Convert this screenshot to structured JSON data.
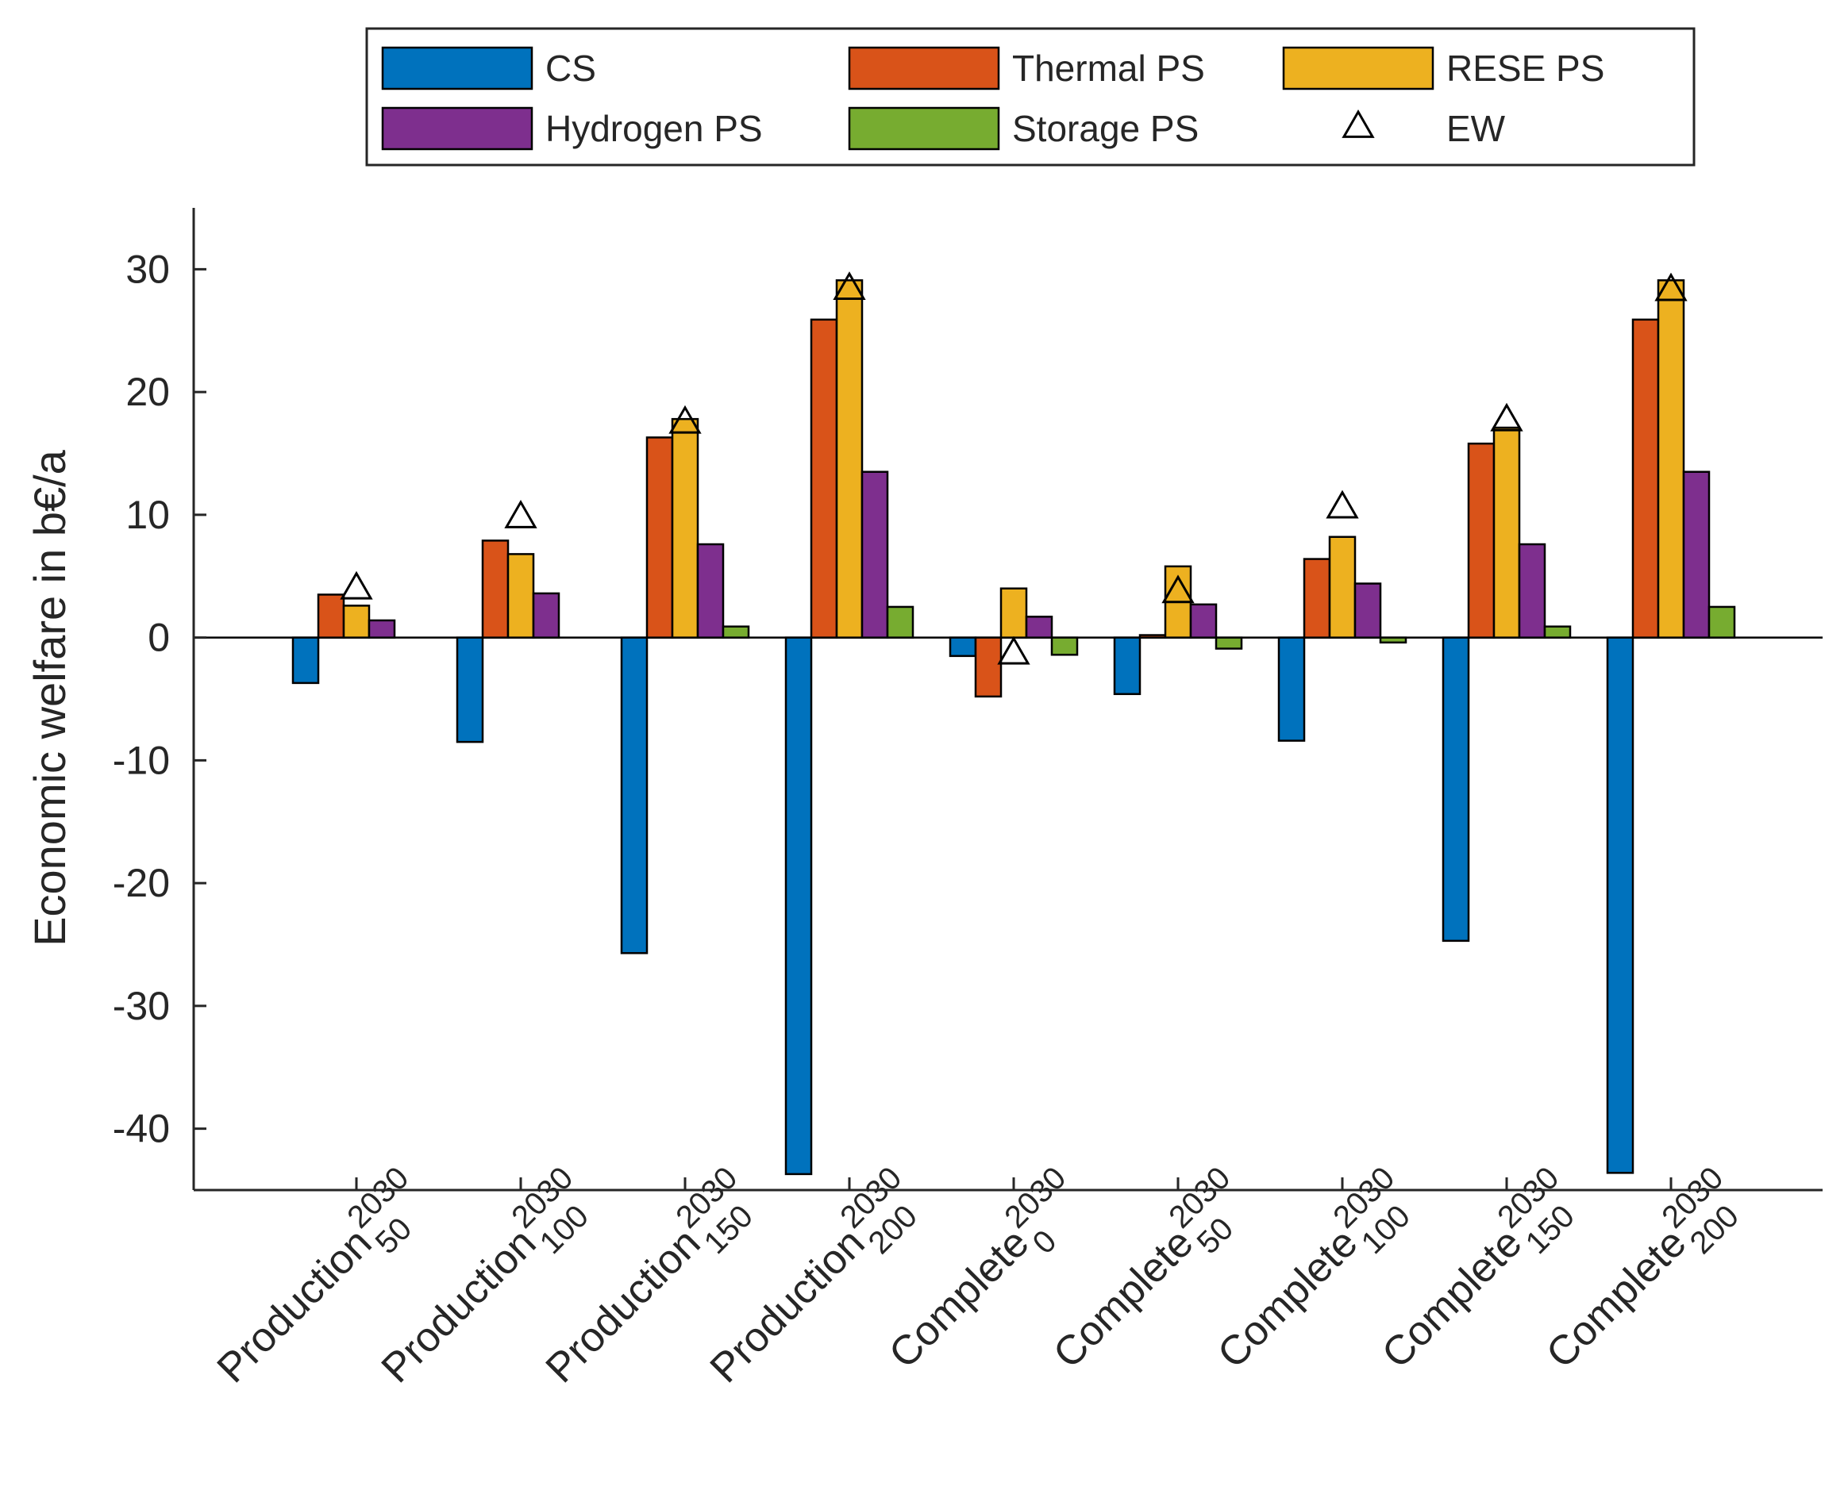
{
  "chart_data": {
    "type": "bar",
    "title": "",
    "xlabel": "",
    "ylabel": "Economic welfare in b€/a",
    "ylim": [
      -45,
      35
    ],
    "yticks": [
      -40,
      -30,
      -20,
      -10,
      0,
      10,
      20,
      30
    ],
    "grid": false,
    "legend_position": "top-outside",
    "categories": [
      {
        "name": "Production",
        "sup": "2030",
        "sub": "50"
      },
      {
        "name": "Production",
        "sup": "2030",
        "sub": "100"
      },
      {
        "name": "Production",
        "sup": "2030",
        "sub": "150"
      },
      {
        "name": "Production",
        "sup": "2030",
        "sub": "200"
      },
      {
        "name": "Complete",
        "sup": "2030",
        "sub": "0"
      },
      {
        "name": "Complete",
        "sup": "2030",
        "sub": "50"
      },
      {
        "name": "Complete",
        "sup": "2030",
        "sub": "100"
      },
      {
        "name": "Complete",
        "sup": "2030",
        "sub": "150"
      },
      {
        "name": "Complete",
        "sup": "2030",
        "sub": "200"
      }
    ],
    "series": [
      {
        "name": "CS",
        "color": "#0072BD",
        "values": [
          -3.7,
          -8.5,
          -25.7,
          -43.7,
          -1.5,
          -4.6,
          -8.4,
          -24.7,
          -43.6
        ]
      },
      {
        "name": "Thermal PS",
        "color": "#D95319",
        "values": [
          3.5,
          7.9,
          16.3,
          25.9,
          -4.8,
          0.2,
          6.4,
          15.8,
          25.9
        ]
      },
      {
        "name": "RESE PS",
        "color": "#EDB120",
        "values": [
          2.6,
          6.8,
          17.8,
          29.1,
          4.0,
          5.8,
          8.2,
          17.1,
          29.1
        ]
      },
      {
        "name": "Hydrogen PS",
        "color": "#7E2F8E",
        "values": [
          1.4,
          3.6,
          7.6,
          13.5,
          1.7,
          2.7,
          4.4,
          7.6,
          13.5
        ]
      },
      {
        "name": "Storage PS",
        "color": "#77AC30",
        "values": [
          0.0,
          0.0,
          0.9,
          2.5,
          -1.4,
          -0.9,
          -0.4,
          0.9,
          2.5
        ]
      }
    ],
    "markers": {
      "name": "EW",
      "symbol": "triangle",
      "values": [
        4.0,
        9.8,
        17.5,
        28.4,
        -1.3,
        3.7,
        10.6,
        17.7,
        28.3
      ]
    },
    "legend": [
      {
        "name": "CS",
        "kind": "bar",
        "color": "#0072BD"
      },
      {
        "name": "Thermal PS",
        "kind": "bar",
        "color": "#D95319"
      },
      {
        "name": "RESE PS",
        "kind": "bar",
        "color": "#EDB120"
      },
      {
        "name": "Hydrogen PS",
        "kind": "bar",
        "color": "#7E2F8E"
      },
      {
        "name": "Storage PS",
        "kind": "bar",
        "color": "#77AC30"
      },
      {
        "name": "EW",
        "kind": "marker",
        "color": "#000000"
      }
    ]
  }
}
